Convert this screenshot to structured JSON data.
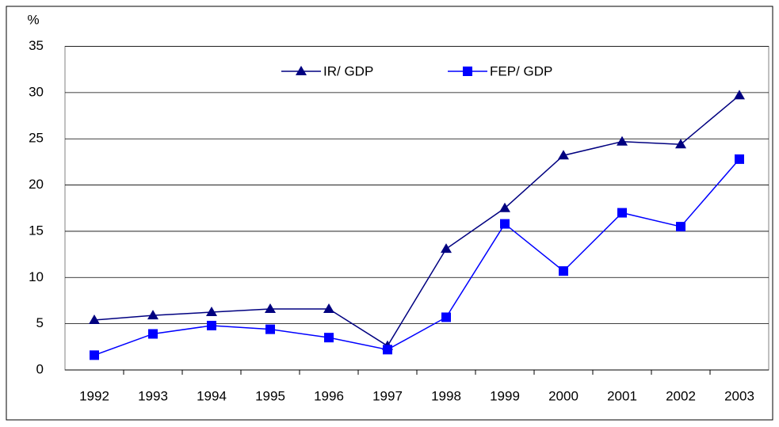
{
  "chart_data": {
    "type": "line",
    "y_label": "%",
    "categories": [
      "1992",
      "1993",
      "1994",
      "1995",
      "1996",
      "1997",
      "1998",
      "1999",
      "2000",
      "2001",
      "2002",
      "2003"
    ],
    "series": [
      {
        "name": "IR/ GDP",
        "color": "#000080",
        "marker": "triangle",
        "values": [
          5.4,
          5.9,
          6.25,
          6.6,
          6.6,
          2.6,
          13.1,
          17.5,
          23.2,
          24.7,
          24.4,
          29.7
        ]
      },
      {
        "name": "FEP/ GDP",
        "color": "#0000ff",
        "marker": "square",
        "values": [
          1.6,
          3.9,
          4.8,
          4.4,
          3.5,
          2.2,
          5.7,
          15.8,
          10.7,
          17.0,
          15.5,
          22.8
        ]
      }
    ],
    "ylim": [
      0,
      35
    ],
    "yticks": [
      0,
      5,
      10,
      15,
      20,
      25,
      30,
      35
    ],
    "grid": true,
    "legend": "top"
  }
}
